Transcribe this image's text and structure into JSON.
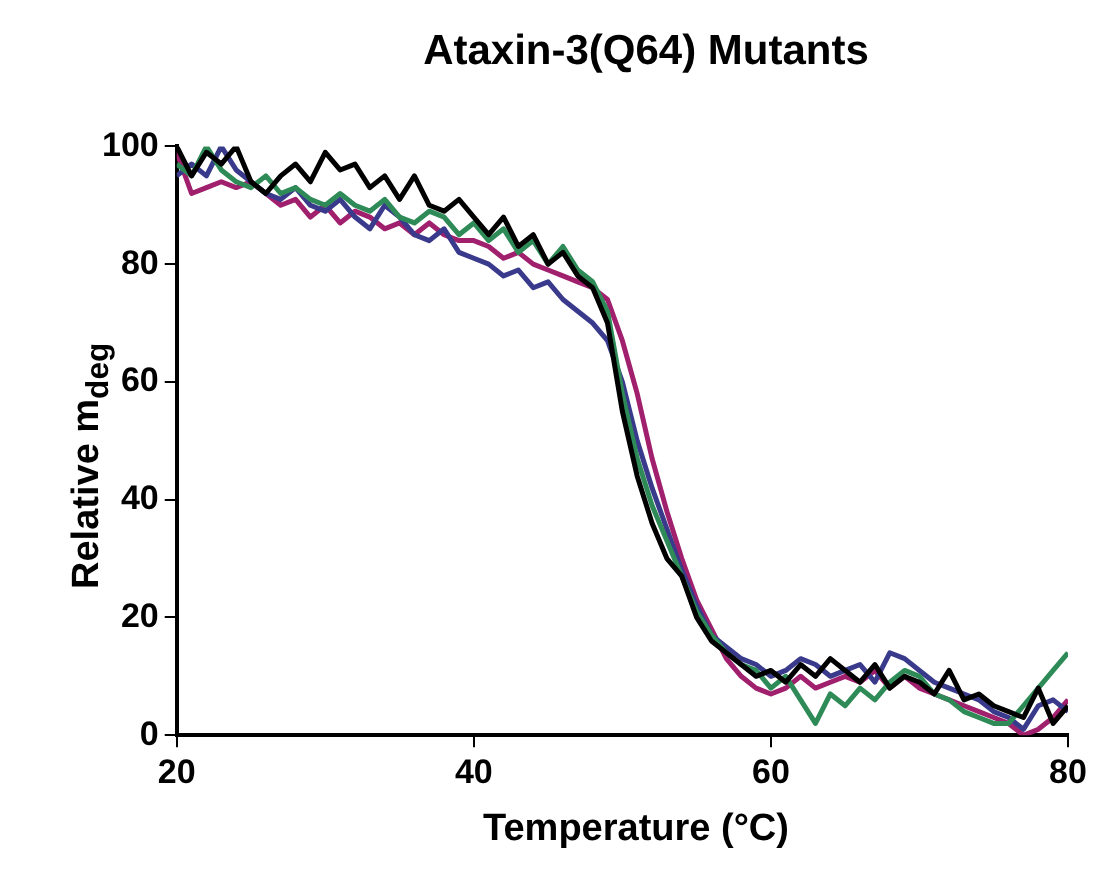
{
  "chart_data": {
    "type": "line",
    "title": "Ataxin-3(Q64) Mutants",
    "xlabel": "Temperature (°C)",
    "ylabel": "Relative m$_{deg}$",
    "xlim": [
      20,
      80
    ],
    "xticks": [
      20,
      40,
      60,
      80
    ],
    "ylim": [
      0,
      100
    ],
    "yticks": [
      0,
      20,
      40,
      60,
      80,
      100
    ],
    "grid": false,
    "legend": false,
    "marker": "none",
    "line_style": "solid",
    "series": [
      {
        "color": "#000000",
        "x": [
          20,
          21,
          22,
          23,
          24,
          25,
          26,
          27,
          28,
          29,
          30,
          31,
          32,
          33,
          34,
          35,
          36,
          37,
          38,
          39,
          40,
          41,
          42,
          43,
          44,
          45,
          46,
          47,
          48,
          49,
          50,
          51,
          52,
          53,
          54,
          55,
          56,
          57,
          58,
          59,
          60,
          61,
          62,
          63,
          64,
          65,
          66,
          67,
          68,
          69,
          70,
          71,
          72,
          73,
          74,
          75,
          76,
          77,
          78,
          79,
          80
        ],
        "values": [
          100,
          95,
          99,
          97,
          100,
          94,
          92,
          95,
          97,
          94,
          99,
          96,
          97,
          93,
          95,
          91,
          95,
          90,
          89,
          91,
          88,
          85,
          88,
          83,
          85,
          80,
          82,
          78,
          76,
          70,
          55,
          44,
          36,
          30,
          27,
          20,
          16,
          14,
          12,
          10,
          11,
          9,
          12,
          10,
          13,
          11,
          9,
          12,
          8,
          10,
          9,
          7,
          11,
          6,
          7,
          5,
          4,
          3,
          8,
          2,
          5
        ]
      },
      {
        "color": "#2e8b57",
        "x": [
          20,
          21,
          22,
          23,
          24,
          25,
          26,
          27,
          28,
          29,
          30,
          31,
          32,
          33,
          34,
          35,
          36,
          37,
          38,
          39,
          40,
          41,
          42,
          43,
          44,
          45,
          46,
          47,
          48,
          49,
          50,
          51,
          52,
          53,
          54,
          55,
          56,
          57,
          58,
          59,
          60,
          61,
          62,
          63,
          64,
          65,
          66,
          67,
          68,
          69,
          70,
          71,
          72,
          73,
          74,
          75,
          76,
          77,
          78,
          79,
          80
        ],
        "values": [
          97,
          95,
          100,
          96,
          94,
          93,
          95,
          92,
          93,
          91,
          90,
          92,
          90,
          89,
          91,
          88,
          87,
          89,
          88,
          85,
          87,
          84,
          86,
          82,
          84,
          80,
          83,
          79,
          77,
          72,
          58,
          47,
          39,
          33,
          27,
          21,
          17,
          14,
          12,
          11,
          8,
          10,
          6,
          2,
          7,
          5,
          8,
          6,
          9,
          11,
          10,
          7,
          6,
          4,
          3,
          2,
          2,
          5,
          8,
          11,
          14
        ]
      },
      {
        "color": "#3a3a8c",
        "x": [
          20,
          21,
          22,
          23,
          24,
          25,
          26,
          27,
          28,
          29,
          30,
          31,
          32,
          33,
          34,
          35,
          36,
          37,
          38,
          39,
          40,
          41,
          42,
          43,
          44,
          45,
          46,
          47,
          48,
          49,
          50,
          51,
          52,
          53,
          54,
          55,
          56,
          57,
          58,
          59,
          60,
          61,
          62,
          63,
          64,
          65,
          66,
          67,
          68,
          69,
          70,
          71,
          72,
          73,
          74,
          75,
          76,
          77,
          78,
          79,
          80
        ],
        "values": [
          95,
          97,
          95,
          100,
          96,
          94,
          92,
          91,
          93,
          90,
          89,
          91,
          88,
          86,
          90,
          88,
          85,
          84,
          86,
          82,
          81,
          80,
          78,
          79,
          76,
          77,
          74,
          72,
          70,
          67,
          60,
          50,
          42,
          35,
          28,
          22,
          17,
          15,
          13,
          12,
          10,
          11,
          13,
          12,
          10,
          11,
          12,
          9,
          14,
          13,
          11,
          9,
          8,
          7,
          6,
          4,
          3,
          1,
          5,
          6,
          4
        ]
      },
      {
        "color": "#a0206e",
        "x": [
          20,
          21,
          22,
          23,
          24,
          25,
          26,
          27,
          28,
          29,
          30,
          31,
          32,
          33,
          34,
          35,
          36,
          37,
          38,
          39,
          40,
          41,
          42,
          43,
          44,
          45,
          46,
          47,
          48,
          49,
          50,
          51,
          52,
          53,
          54,
          55,
          56,
          57,
          58,
          59,
          60,
          61,
          62,
          63,
          64,
          65,
          66,
          67,
          68,
          69,
          70,
          71,
          72,
          73,
          74,
          75,
          76,
          77,
          78,
          79,
          80
        ],
        "values": [
          99,
          92,
          93,
          94,
          93,
          94,
          92,
          90,
          91,
          88,
          90,
          87,
          89,
          88,
          86,
          87,
          85,
          87,
          85,
          84,
          84,
          83,
          81,
          82,
          80,
          79,
          78,
          77,
          76,
          74,
          67,
          58,
          47,
          38,
          30,
          23,
          18,
          13,
          10,
          8,
          7,
          8,
          10,
          8,
          9,
          10,
          9,
          11,
          8,
          10,
          8,
          7,
          6,
          5,
          4,
          3,
          2,
          0,
          1,
          3,
          6
        ]
      }
    ]
  }
}
